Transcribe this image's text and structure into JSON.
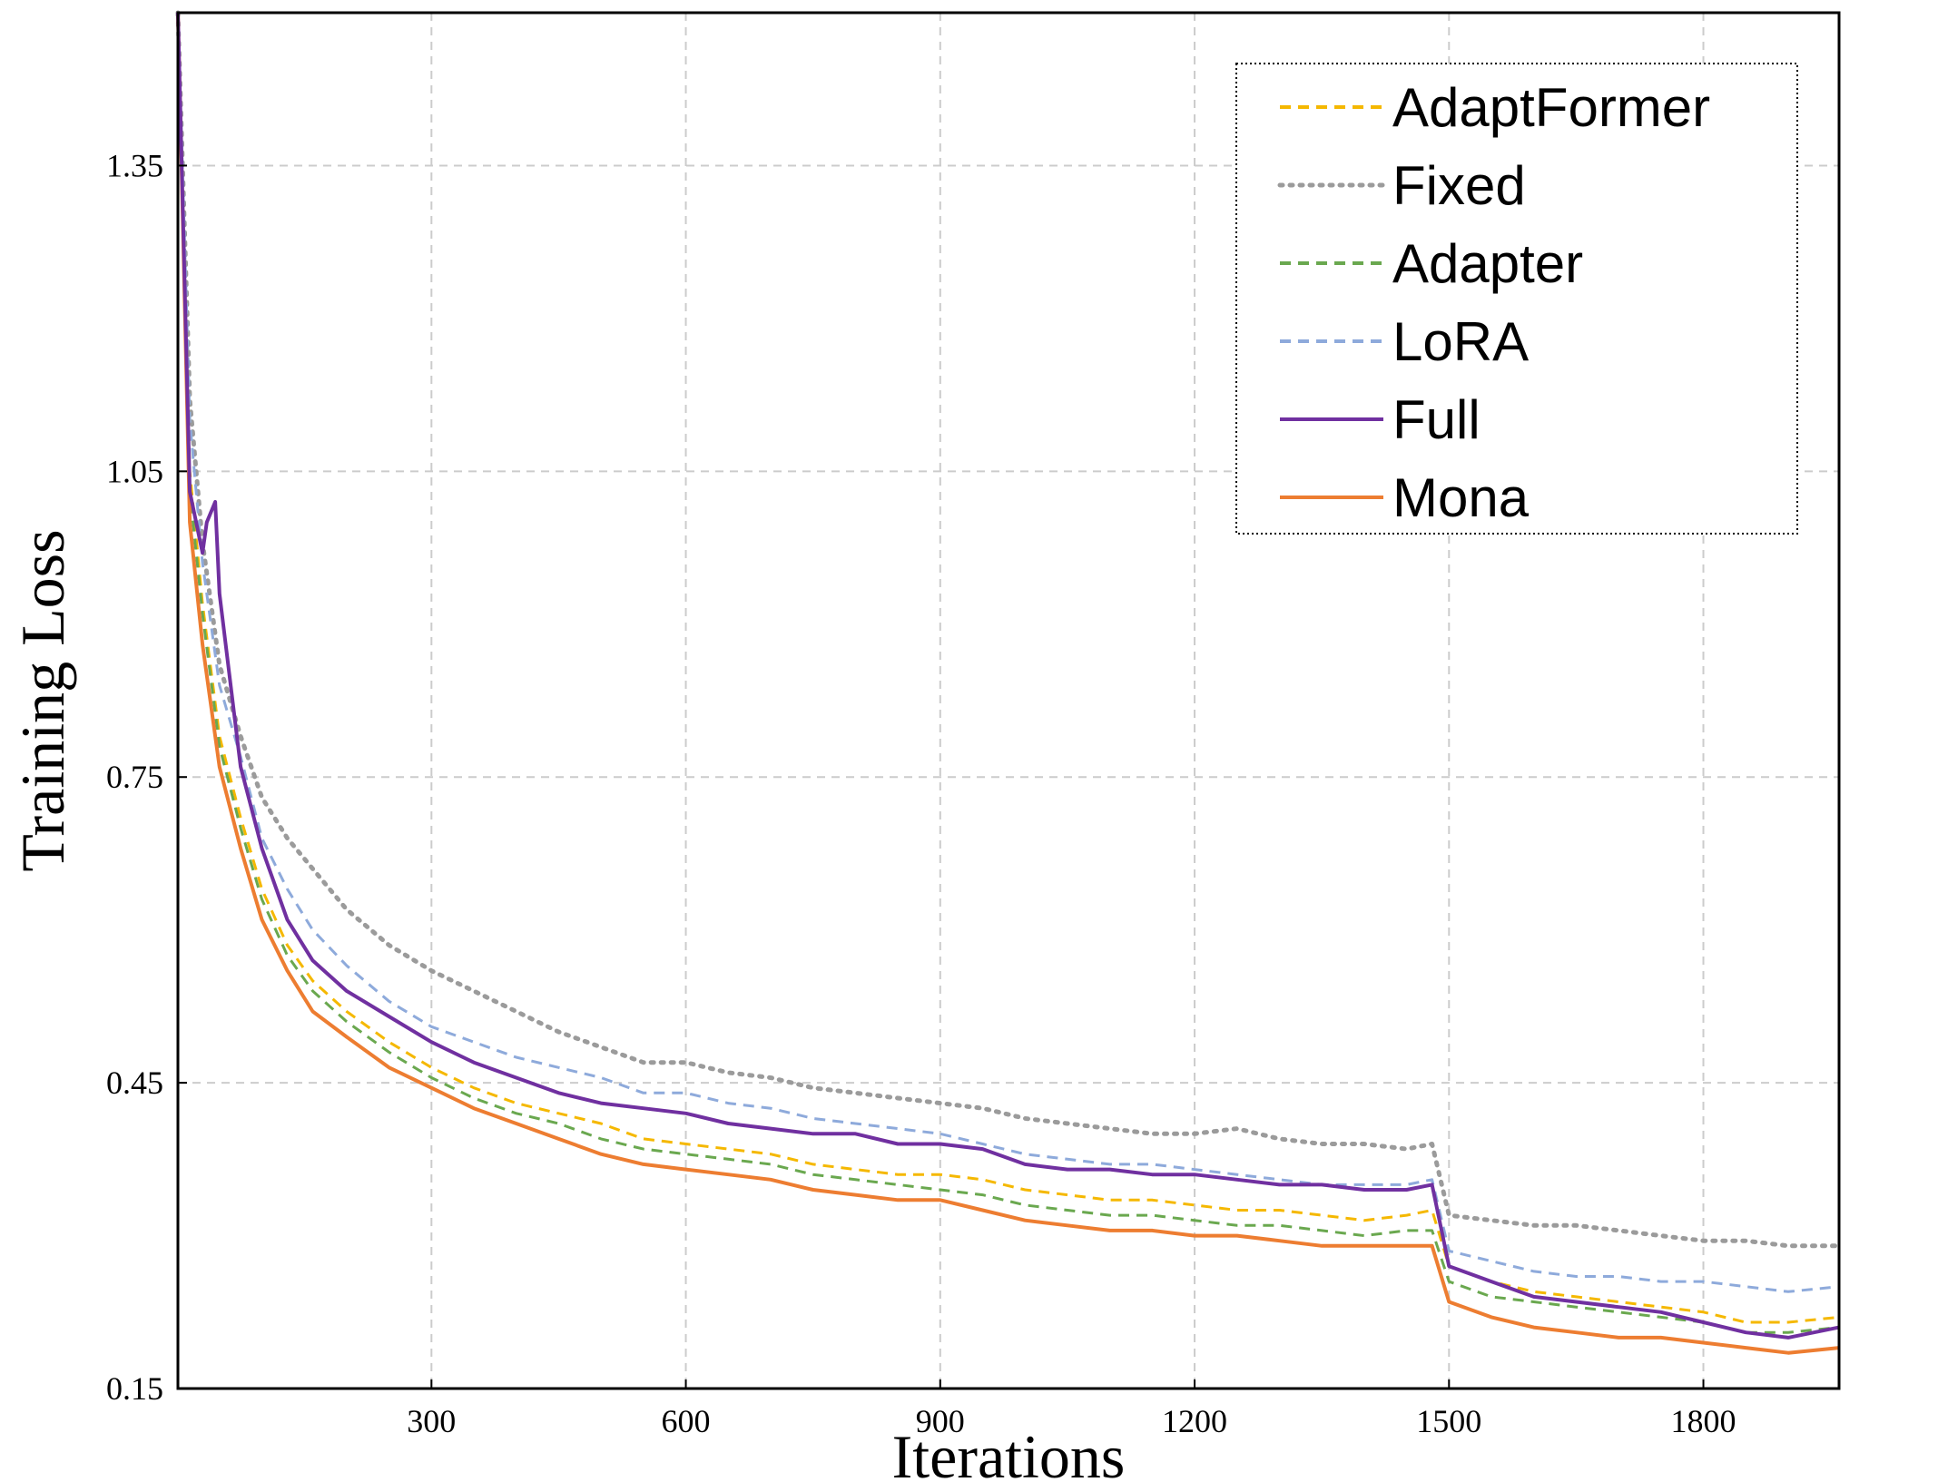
{
  "chart_data": {
    "type": "line",
    "title": "",
    "xlabel": "Iterations",
    "ylabel": "Training Loss",
    "xlim": [
      1,
      1960
    ],
    "ylim": [
      0.15,
      1.5
    ],
    "xticks": [
      300,
      600,
      900,
      1200,
      1500,
      1800
    ],
    "yticks": [
      0.15,
      0.45,
      0.75,
      1.05,
      1.35
    ],
    "xtick_labels": [
      "300",
      "600",
      "900",
      "1200",
      "1500",
      "1800"
    ],
    "ytick_labels": [
      "0.15",
      "0.45",
      "0.75",
      "1.05",
      "1.35"
    ],
    "grid": true,
    "legend_position": "top-right",
    "series": [
      {
        "name": "AdaptFormer",
        "color": "#f5b800",
        "dash": "dashed",
        "x": [
          1,
          15,
          30,
          50,
          75,
          100,
          130,
          160,
          200,
          250,
          300,
          350,
          400,
          450,
          500,
          550,
          600,
          650,
          700,
          750,
          800,
          850,
          900,
          950,
          1000,
          1050,
          1100,
          1150,
          1200,
          1250,
          1300,
          1350,
          1400,
          1450,
          1480,
          1500,
          1550,
          1600,
          1650,
          1700,
          1750,
          1800,
          1850,
          1900,
          1960
        ],
        "values": [
          1.5,
          1.05,
          0.92,
          0.79,
          0.71,
          0.64,
          0.585,
          0.55,
          0.52,
          0.49,
          0.465,
          0.445,
          0.43,
          0.42,
          0.41,
          0.395,
          0.39,
          0.385,
          0.38,
          0.37,
          0.365,
          0.36,
          0.36,
          0.355,
          0.345,
          0.34,
          0.335,
          0.335,
          0.33,
          0.325,
          0.325,
          0.32,
          0.315,
          0.32,
          0.325,
          0.27,
          0.255,
          0.245,
          0.24,
          0.235,
          0.23,
          0.225,
          0.215,
          0.215,
          0.22
        ]
      },
      {
        "name": "Fixed",
        "color": "#9b9b9b",
        "dash": "dotted",
        "x": [
          1,
          15,
          30,
          50,
          75,
          100,
          130,
          160,
          200,
          250,
          300,
          350,
          400,
          450,
          500,
          550,
          600,
          650,
          700,
          750,
          800,
          850,
          900,
          950,
          1000,
          1050,
          1100,
          1150,
          1200,
          1250,
          1300,
          1350,
          1400,
          1450,
          1480,
          1500,
          1550,
          1600,
          1650,
          1700,
          1750,
          1800,
          1850,
          1900,
          1960
        ],
        "values": [
          1.5,
          1.12,
          0.98,
          0.86,
          0.79,
          0.73,
          0.69,
          0.66,
          0.62,
          0.585,
          0.56,
          0.54,
          0.52,
          0.5,
          0.485,
          0.47,
          0.47,
          0.46,
          0.455,
          0.445,
          0.44,
          0.435,
          0.43,
          0.425,
          0.415,
          0.41,
          0.405,
          0.4,
          0.4,
          0.405,
          0.395,
          0.39,
          0.39,
          0.385,
          0.39,
          0.32,
          0.315,
          0.31,
          0.31,
          0.305,
          0.3,
          0.295,
          0.295,
          0.29,
          0.29
        ]
      },
      {
        "name": "Adapter",
        "color": "#6aa84f",
        "dash": "dashed",
        "x": [
          1,
          15,
          30,
          50,
          75,
          100,
          130,
          160,
          200,
          250,
          300,
          350,
          400,
          450,
          500,
          550,
          600,
          650,
          700,
          750,
          800,
          850,
          900,
          950,
          1000,
          1050,
          1100,
          1150,
          1200,
          1250,
          1300,
          1350,
          1400,
          1450,
          1480,
          1500,
          1550,
          1600,
          1650,
          1700,
          1750,
          1800,
          1850,
          1900,
          1960
        ],
        "values": [
          1.5,
          1.03,
          0.91,
          0.78,
          0.7,
          0.63,
          0.575,
          0.54,
          0.51,
          0.48,
          0.455,
          0.435,
          0.42,
          0.41,
          0.395,
          0.385,
          0.38,
          0.375,
          0.37,
          0.36,
          0.355,
          0.35,
          0.345,
          0.34,
          0.33,
          0.325,
          0.32,
          0.32,
          0.315,
          0.31,
          0.31,
          0.305,
          0.3,
          0.305,
          0.305,
          0.255,
          0.24,
          0.235,
          0.23,
          0.225,
          0.22,
          0.215,
          0.205,
          0.205,
          0.21
        ]
      },
      {
        "name": "LoRA",
        "color": "#8eaadb",
        "dash": "dashed",
        "x": [
          1,
          15,
          30,
          50,
          75,
          100,
          130,
          160,
          200,
          250,
          300,
          350,
          400,
          450,
          500,
          550,
          600,
          650,
          700,
          750,
          800,
          850,
          900,
          950,
          1000,
          1050,
          1100,
          1150,
          1200,
          1250,
          1300,
          1350,
          1400,
          1450,
          1480,
          1500,
          1550,
          1600,
          1650,
          1700,
          1750,
          1800,
          1850,
          1900,
          1960
        ],
        "values": [
          1.5,
          1.1,
          0.96,
          0.84,
          0.77,
          0.69,
          0.64,
          0.6,
          0.565,
          0.53,
          0.505,
          0.49,
          0.475,
          0.465,
          0.455,
          0.44,
          0.44,
          0.43,
          0.425,
          0.415,
          0.41,
          0.405,
          0.4,
          0.39,
          0.38,
          0.375,
          0.37,
          0.37,
          0.365,
          0.36,
          0.355,
          0.35,
          0.35,
          0.35,
          0.355,
          0.285,
          0.275,
          0.265,
          0.26,
          0.26,
          0.255,
          0.255,
          0.25,
          0.245,
          0.25
        ]
      },
      {
        "name": "Full",
        "color": "#7030a0",
        "dash": "solid",
        "x": [
          1,
          15,
          30,
          35,
          45,
          50,
          75,
          100,
          130,
          160,
          200,
          250,
          300,
          350,
          400,
          450,
          500,
          550,
          600,
          650,
          700,
          750,
          800,
          850,
          900,
          950,
          1000,
          1050,
          1100,
          1150,
          1200,
          1250,
          1300,
          1350,
          1400,
          1450,
          1480,
          1500,
          1550,
          1600,
          1650,
          1700,
          1750,
          1800,
          1850,
          1900,
          1960
        ],
        "values": [
          1.5,
          1.03,
          0.97,
          1.0,
          1.02,
          0.93,
          0.76,
          0.68,
          0.61,
          0.57,
          0.54,
          0.515,
          0.49,
          0.47,
          0.455,
          0.44,
          0.43,
          0.425,
          0.42,
          0.41,
          0.405,
          0.4,
          0.4,
          0.39,
          0.39,
          0.385,
          0.37,
          0.365,
          0.365,
          0.36,
          0.36,
          0.355,
          0.35,
          0.35,
          0.345,
          0.345,
          0.35,
          0.27,
          0.255,
          0.24,
          0.235,
          0.23,
          0.225,
          0.215,
          0.205,
          0.2,
          0.21
        ]
      },
      {
        "name": "Mona",
        "color": "#ed7d31",
        "dash": "solid",
        "x": [
          1,
          15,
          30,
          50,
          75,
          100,
          130,
          160,
          200,
          250,
          300,
          350,
          400,
          450,
          500,
          550,
          600,
          650,
          700,
          750,
          800,
          850,
          900,
          950,
          1000,
          1050,
          1100,
          1150,
          1200,
          1250,
          1300,
          1350,
          1400,
          1450,
          1480,
          1500,
          1550,
          1600,
          1650,
          1700,
          1750,
          1800,
          1850,
          1900,
          1960
        ],
        "values": [
          1.5,
          1.0,
          0.88,
          0.76,
          0.68,
          0.61,
          0.56,
          0.52,
          0.495,
          0.465,
          0.445,
          0.425,
          0.41,
          0.395,
          0.38,
          0.37,
          0.365,
          0.36,
          0.355,
          0.345,
          0.34,
          0.335,
          0.335,
          0.325,
          0.315,
          0.31,
          0.305,
          0.305,
          0.3,
          0.3,
          0.295,
          0.29,
          0.29,
          0.29,
          0.29,
          0.235,
          0.22,
          0.21,
          0.205,
          0.2,
          0.2,
          0.195,
          0.19,
          0.185,
          0.19
        ]
      }
    ]
  }
}
